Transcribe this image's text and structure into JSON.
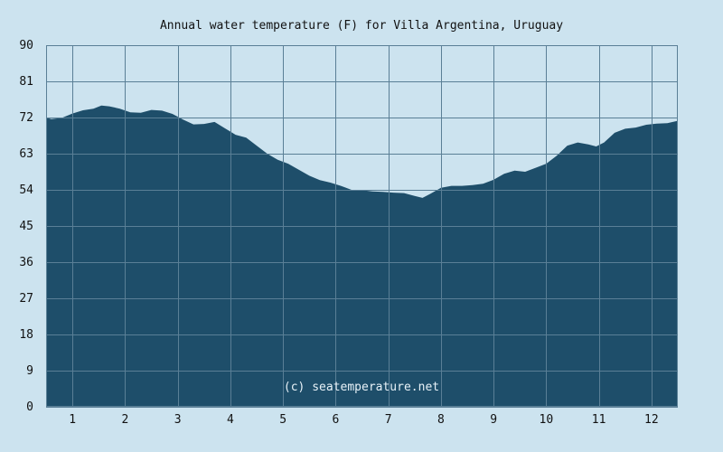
{
  "chart_data": {
    "type": "area",
    "title": "Annual water temperature (F) for Villa Argentina, Uruguay",
    "xlabel": "",
    "ylabel": "",
    "watermark": "(c) seatemperature.net",
    "x_ticks": [
      "1",
      "2",
      "3",
      "4",
      "5",
      "6",
      "7",
      "8",
      "9",
      "10",
      "11",
      "12"
    ],
    "y_ticks": [
      "0",
      "9",
      "18",
      "27",
      "36",
      "45",
      "54",
      "63",
      "72",
      "81",
      "90"
    ],
    "xlim": [
      0.5,
      12.5
    ],
    "ylim": [
      0,
      90
    ],
    "grid": true,
    "colors": {
      "background": "#cce3ef",
      "fill": "#1e4e6a",
      "grid": "#5a7f96",
      "text": "#111111"
    },
    "series": [
      {
        "x": [
          0.5,
          0.6,
          0.8,
          1.0,
          1.2,
          1.4,
          1.55,
          1.7,
          1.9,
          2.1,
          2.3,
          2.5,
          2.7,
          2.9,
          3.1,
          3.3,
          3.5,
          3.7,
          3.9,
          4.1,
          4.3,
          4.5,
          4.7,
          4.9,
          5.1,
          5.3,
          5.5,
          5.7,
          5.9,
          6.1,
          6.3,
          6.5,
          6.7,
          6.9,
          7.1,
          7.3,
          7.5,
          7.65,
          7.8,
          8.0,
          8.2,
          8.4,
          8.6,
          8.8,
          9.0,
          9.2,
          9.4,
          9.6,
          9.8,
          10.0,
          10.2,
          10.4,
          10.6,
          10.8,
          10.95,
          11.1,
          11.3,
          11.5,
          11.7,
          11.9,
          12.1,
          12.3,
          12.5
        ],
        "y": [
          72.0,
          71.6,
          71.9,
          73.0,
          73.8,
          74.2,
          75.0,
          74.8,
          74.2,
          73.3,
          73.2,
          73.9,
          73.7,
          72.9,
          71.5,
          70.3,
          70.4,
          70.9,
          69.3,
          67.7,
          67.0,
          65.0,
          63.0,
          61.5,
          60.5,
          59.0,
          57.5,
          56.4,
          55.8,
          55.0,
          54.0,
          53.9,
          53.6,
          53.5,
          53.3,
          53.2,
          52.5,
          52.0,
          53.0,
          54.5,
          55.0,
          55.0,
          55.2,
          55.5,
          56.5,
          58.0,
          58.8,
          58.5,
          59.5,
          60.5,
          62.5,
          65.0,
          65.8,
          65.3,
          64.8,
          65.8,
          68.2,
          69.2,
          69.5,
          70.2,
          70.5,
          70.6,
          71.2
        ]
      }
    ]
  }
}
